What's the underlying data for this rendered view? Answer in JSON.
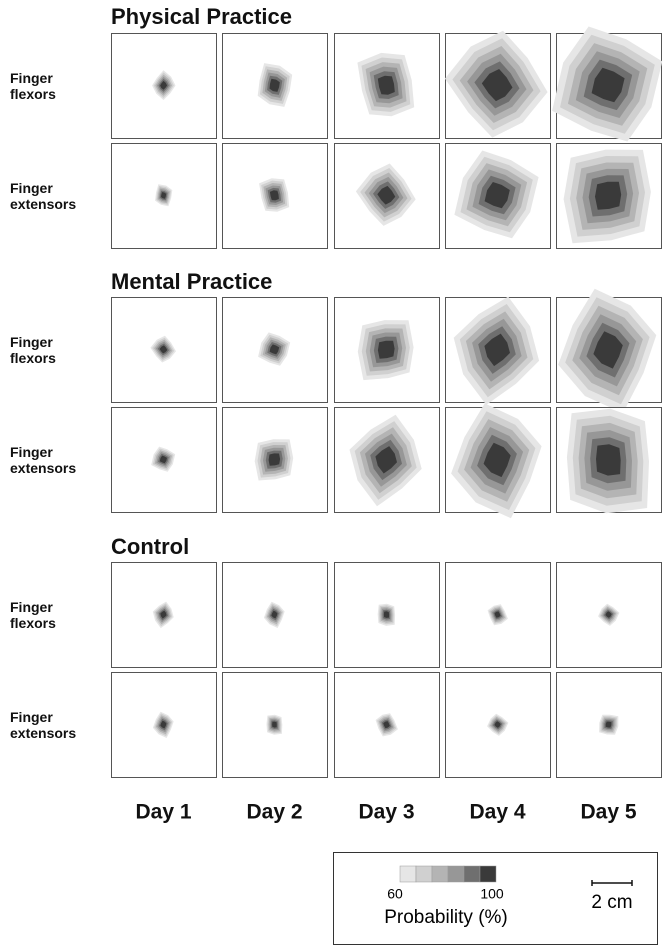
{
  "groups": [
    {
      "title": "Physical Practice",
      "rows": [
        {
          "label": "Finger flexors"
        },
        {
          "label": "Finger extensors"
        }
      ]
    },
    {
      "title": "Mental Practice",
      "rows": [
        {
          "label": "Finger flexors"
        },
        {
          "label": "Finger extensors"
        }
      ]
    },
    {
      "title": "Control",
      "rows": [
        {
          "label": "Finger flexors"
        },
        {
          "label": "Finger extensors"
        }
      ]
    }
  ],
  "columns": [
    "Day 1",
    "Day 2",
    "Day 3",
    "Day 4",
    "Day 5"
  ],
  "legend": {
    "min": 60,
    "max": 100,
    "label": "Probability (%)",
    "scale": "2 cm"
  }
}
